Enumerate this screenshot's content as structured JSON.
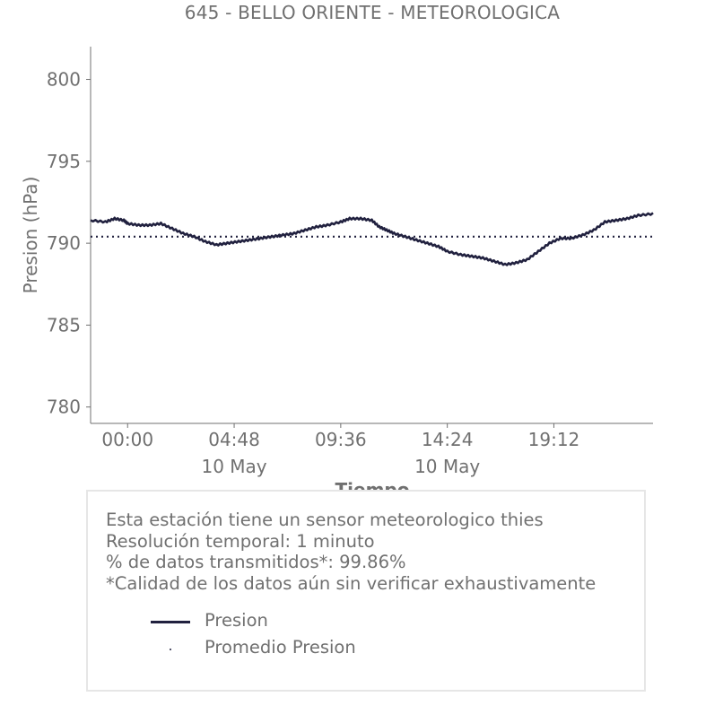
{
  "title": "645 - BELLO ORIENTE - METEOROLOGICA",
  "colors": {
    "series": "#21213f",
    "text": "#707070",
    "axis": "#707070",
    "box_border": "#e6e6e6"
  },
  "chart_data": {
    "type": "line",
    "title": "645 - BELLO ORIENTE - METEOROLOGICA",
    "xlabel": "Tiempo",
    "ylabel": "Presion (hPa)",
    "ylim": [
      779,
      802
    ],
    "yticks": [
      780,
      785,
      790,
      795,
      800
    ],
    "xlim": [
      "2025-05-09 22:20",
      "2025-05-10 23:40"
    ],
    "xticks": [
      {
        "time": "2025-05-10 00:00",
        "label": "00:00",
        "sublabel": ""
      },
      {
        "time": "2025-05-10 04:48",
        "label": "04:48",
        "sublabel": "10 May"
      },
      {
        "time": "2025-05-10 09:36",
        "label": "09:36",
        "sublabel": ""
      },
      {
        "time": "2025-05-10 14:24",
        "label": "14:24",
        "sublabel": "10 May"
      },
      {
        "time": "2025-05-10 19:12",
        "label": "19:12",
        "sublabel": ""
      }
    ],
    "series": [
      {
        "name": "Presion",
        "style": "solid",
        "points": [
          [
            "2025-05-09 22:20",
            791.4
          ],
          [
            "2025-05-09 23:00",
            791.3
          ],
          [
            "2025-05-09 23:25",
            791.5
          ],
          [
            "2025-05-09 23:50",
            791.4
          ],
          [
            "2025-05-10 00:00",
            791.2
          ],
          [
            "2025-05-10 00:30",
            791.1
          ],
          [
            "2025-05-10 01:00",
            791.1
          ],
          [
            "2025-05-10 01:30",
            791.2
          ],
          [
            "2025-05-10 02:00",
            790.9
          ],
          [
            "2025-05-10 02:30",
            790.6
          ],
          [
            "2025-05-10 03:00",
            790.4
          ],
          [
            "2025-05-10 03:30",
            790.1
          ],
          [
            "2025-05-10 04:00",
            789.9
          ],
          [
            "2025-05-10 04:30",
            790.0
          ],
          [
            "2025-05-10 05:00",
            790.1
          ],
          [
            "2025-05-10 05:30",
            790.2
          ],
          [
            "2025-05-10 06:00",
            790.3
          ],
          [
            "2025-05-10 06:30",
            790.4
          ],
          [
            "2025-05-10 07:00",
            790.5
          ],
          [
            "2025-05-10 07:30",
            790.6
          ],
          [
            "2025-05-10 08:00",
            790.8
          ],
          [
            "2025-05-10 08:30",
            791.0
          ],
          [
            "2025-05-10 09:00",
            791.1
          ],
          [
            "2025-05-10 09:36",
            791.3
          ],
          [
            "2025-05-10 10:00",
            791.5
          ],
          [
            "2025-05-10 10:30",
            791.5
          ],
          [
            "2025-05-10 11:00",
            791.4
          ],
          [
            "2025-05-10 11:20",
            791.0
          ],
          [
            "2025-05-10 11:40",
            790.8
          ],
          [
            "2025-05-10 12:00",
            790.6
          ],
          [
            "2025-05-10 12:30",
            790.4
          ],
          [
            "2025-05-10 13:00",
            790.2
          ],
          [
            "2025-05-10 13:30",
            790.0
          ],
          [
            "2025-05-10 14:00",
            789.8
          ],
          [
            "2025-05-10 14:24",
            789.5
          ],
          [
            "2025-05-10 15:00",
            789.3
          ],
          [
            "2025-05-10 15:30",
            789.2
          ],
          [
            "2025-05-10 16:00",
            789.1
          ],
          [
            "2025-05-10 16:30",
            788.9
          ],
          [
            "2025-05-10 17:00",
            788.7
          ],
          [
            "2025-05-10 17:30",
            788.8
          ],
          [
            "2025-05-10 18:00",
            789.0
          ],
          [
            "2025-05-10 18:30",
            789.5
          ],
          [
            "2025-05-10 19:00",
            790.0
          ],
          [
            "2025-05-10 19:30",
            790.3
          ],
          [
            "2025-05-10 20:00",
            790.3
          ],
          [
            "2025-05-10 20:30",
            790.5
          ],
          [
            "2025-05-10 21:00",
            790.8
          ],
          [
            "2025-05-10 21:30",
            791.3
          ],
          [
            "2025-05-10 22:00",
            791.4
          ],
          [
            "2025-05-10 22:30",
            791.5
          ],
          [
            "2025-05-10 23:00",
            791.7
          ],
          [
            "2025-05-10 23:40",
            791.8
          ]
        ]
      },
      {
        "name": "Promedio Presion",
        "style": "dotted",
        "value": 790.4
      }
    ]
  },
  "info": {
    "lines": [
      "Esta estación tiene un sensor meteorologico thies",
      "Resolución temporal: 1 minuto",
      "% de datos transmitidos*: 99.86%",
      "*Calidad de los datos aún sin verificar exhaustivamente"
    ],
    "legend": [
      "Presion",
      "Promedio Presion"
    ]
  }
}
